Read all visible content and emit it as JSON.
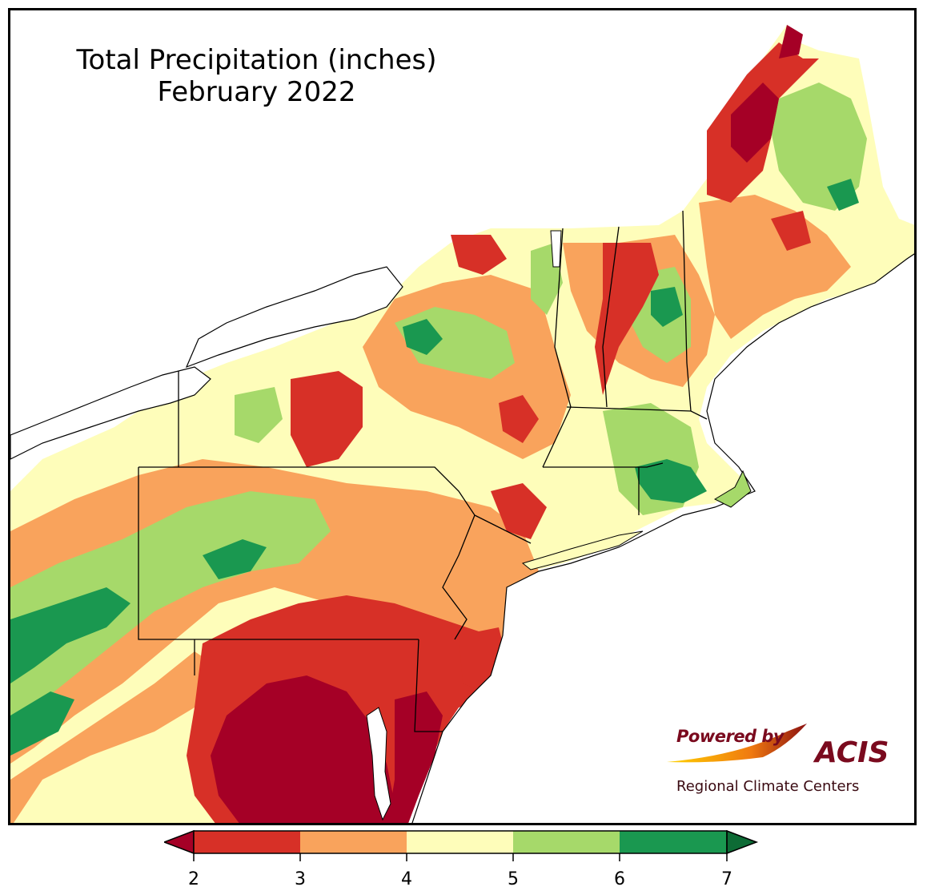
{
  "title": {
    "line1": "Total Precipitation (inches)",
    "line2": "February 2022"
  },
  "logo": {
    "powered_by": "Powered by",
    "brand": "ACIS",
    "subtitle": "Regional Climate Centers",
    "brand_color": "#7a0a1e"
  },
  "legend": {
    "ticks": [
      "2",
      "3",
      "4",
      "5",
      "6",
      "7"
    ],
    "bins": [
      {
        "range": "< 2",
        "color": "#a50026"
      },
      {
        "range": "2-3",
        "color": "#d73027"
      },
      {
        "range": "3-4",
        "color": "#f9a35c"
      },
      {
        "range": "4-5",
        "color": "#fefdba"
      },
      {
        "range": "5-6",
        "color": "#a6d96a"
      },
      {
        "range": "6-7",
        "color": "#1a9850"
      },
      {
        "range": "> 7",
        "color": "#0d6b35"
      }
    ]
  }
}
